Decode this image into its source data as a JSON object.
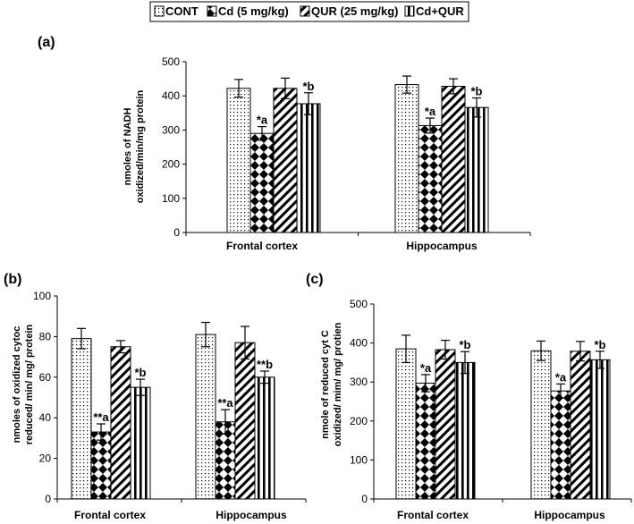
{
  "legend": {
    "items": [
      {
        "label": "CONT",
        "pattern": "dots"
      },
      {
        "label": "Cd (5 mg/kg)",
        "pattern": "diamond"
      },
      {
        "label": "QUR (25 mg/kg)",
        "pattern": "diag"
      },
      {
        "label": "Cd+QUR",
        "pattern": "vert"
      }
    ]
  },
  "chart_data": [
    {
      "panel": "(a)",
      "type": "bar",
      "categories": [
        "Frontal cortex",
        "Hippocampus"
      ],
      "ylabel_line1": "nmoles of NADH",
      "ylabel_line2": "oxidized/min/mg protein",
      "ylim": [
        0,
        500
      ],
      "yticks": [
        0,
        100,
        200,
        300,
        400,
        500
      ],
      "series": [
        {
          "name": "CONT",
          "values": [
            422,
            433
          ],
          "errors": [
            26,
            25
          ],
          "labels": [
            "",
            ""
          ]
        },
        {
          "name": "Cd (5 mg/kg)",
          "values": [
            290,
            313
          ],
          "errors": [
            20,
            22
          ],
          "labels": [
            "*a",
            "*a"
          ]
        },
        {
          "name": "QUR (25 mg/kg)",
          "values": [
            422,
            428
          ],
          "errors": [
            30,
            22
          ],
          "labels": [
            "",
            ""
          ]
        },
        {
          "name": "Cd+QUR",
          "values": [
            377,
            366
          ],
          "errors": [
            32,
            28
          ],
          "labels": [
            "*b",
            "*b"
          ]
        }
      ]
    },
    {
      "panel": "(b)",
      "type": "bar",
      "categories": [
        "Frontal cortex",
        "Hippocampus"
      ],
      "ylabel_line1": "nmoles of oxidized cytoc",
      "ylabel_line2": "reduced/ min/ mg/ protein",
      "ylim": [
        0,
        100
      ],
      "yticks": [
        0,
        20,
        40,
        60,
        80,
        100
      ],
      "series": [
        {
          "name": "CONT",
          "values": [
            79,
            81
          ],
          "errors": [
            5,
            6
          ],
          "labels": [
            "",
            ""
          ]
        },
        {
          "name": "Cd (5 mg/kg)",
          "values": [
            33,
            38
          ],
          "errors": [
            4,
            6
          ],
          "labels": [
            "**a",
            "**a"
          ]
        },
        {
          "name": "QUR (25 mg/kg)",
          "values": [
            75,
            77
          ],
          "errors": [
            3,
            8
          ],
          "labels": [
            "",
            ""
          ]
        },
        {
          "name": "Cd+QUR",
          "values": [
            55,
            60
          ],
          "errors": [
            4,
            3
          ],
          "labels": [
            "*b",
            "**b"
          ]
        }
      ]
    },
    {
      "panel": "(c)",
      "type": "bar",
      "categories": [
        "Frontal cortex",
        "Hippocampus"
      ],
      "ylabel_line1": "nmole of reduced cyt C",
      "ylabel_line2": "oxidized/ mim/ mg/ protien",
      "ylim": [
        0,
        500
      ],
      "yticks": [
        0,
        100,
        200,
        300,
        400,
        500
      ],
      "series": [
        {
          "name": "CONT",
          "values": [
            385,
            380
          ],
          "errors": [
            35,
            25
          ],
          "labels": [
            "",
            ""
          ]
        },
        {
          "name": "Cd (5 mg/kg)",
          "values": [
            297,
            277
          ],
          "errors": [
            22,
            18
          ],
          "labels": [
            "*a",
            "*a"
          ]
        },
        {
          "name": "QUR (25 mg/kg)",
          "values": [
            383,
            379
          ],
          "errors": [
            24,
            25
          ],
          "labels": [
            "",
            ""
          ]
        },
        {
          "name": "Cd+QUR",
          "values": [
            350,
            357
          ],
          "errors": [
            28,
            22
          ],
          "labels": [
            "*b",
            "*b"
          ]
        }
      ]
    }
  ]
}
